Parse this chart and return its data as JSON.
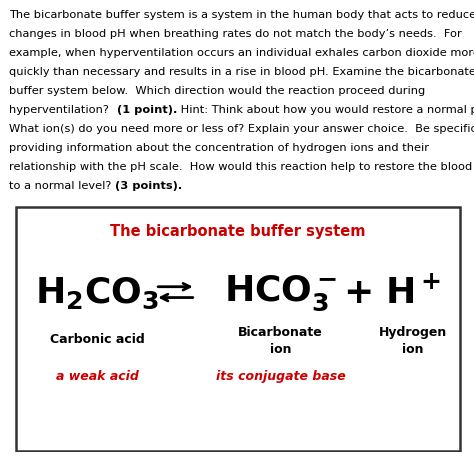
{
  "title": "The bicarbonate buffer system",
  "title_color": "#cc0000",
  "background_color": "#ffffff",
  "border_color": "#333333",
  "text_color": "#000000",
  "red_color": "#cc0000",
  "label_carbonic": "Carbonic acid",
  "label_bicarb": "Bicarbonate\nion",
  "label_hydrogen": "Hydrogen\nion",
  "sublabel_carbonic": "a weak acid",
  "sublabel_bicarb": "its conjugate base",
  "para_fontsize": 8.2,
  "para_linespacing": 1.55,
  "diagram_title_fontsize": 10.5,
  "formula_fontsize": 26,
  "label_fontsize": 9.0
}
